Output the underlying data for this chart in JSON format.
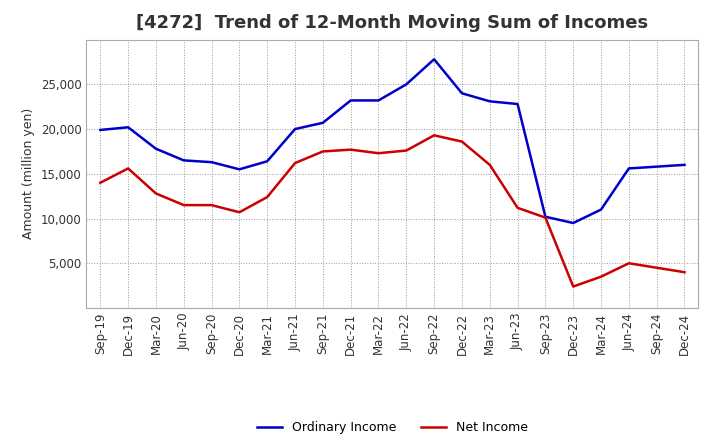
{
  "title": "[4272]  Trend of 12-Month Moving Sum of Incomes",
  "ylabel": "Amount (million yen)",
  "labels": [
    "Sep-19",
    "Dec-19",
    "Mar-20",
    "Jun-20",
    "Sep-20",
    "Dec-20",
    "Mar-21",
    "Jun-21",
    "Sep-21",
    "Dec-21",
    "Mar-22",
    "Jun-22",
    "Sep-22",
    "Dec-22",
    "Mar-23",
    "Jun-23",
    "Sep-23",
    "Dec-23",
    "Mar-24",
    "Jun-24",
    "Sep-24",
    "Dec-24"
  ],
  "ordinary_income": [
    19900,
    20200,
    17800,
    16500,
    16300,
    15500,
    16400,
    20000,
    20700,
    23200,
    23200,
    25000,
    27800,
    24000,
    23100,
    22800,
    10200,
    9500,
    11000,
    15600,
    15800,
    16000
  ],
  "net_income": [
    14000,
    15600,
    12800,
    11500,
    11500,
    10700,
    12400,
    16200,
    17500,
    17700,
    17300,
    17600,
    19300,
    18600,
    16000,
    11200,
    10100,
    2400,
    3500,
    5000,
    4500,
    4000
  ],
  "ordinary_color": "#0000CC",
  "net_color": "#CC0000",
  "background_color": "#ffffff",
  "plot_bg_color": "#ffffff",
  "grid_color": "#999999",
  "ylim": [
    0,
    30000
  ],
  "yticks": [
    5000,
    10000,
    15000,
    20000,
    25000
  ],
  "title_fontsize": 13,
  "axis_label_fontsize": 9,
  "tick_fontsize": 8.5,
  "legend_fontsize": 9,
  "linewidth": 1.8
}
